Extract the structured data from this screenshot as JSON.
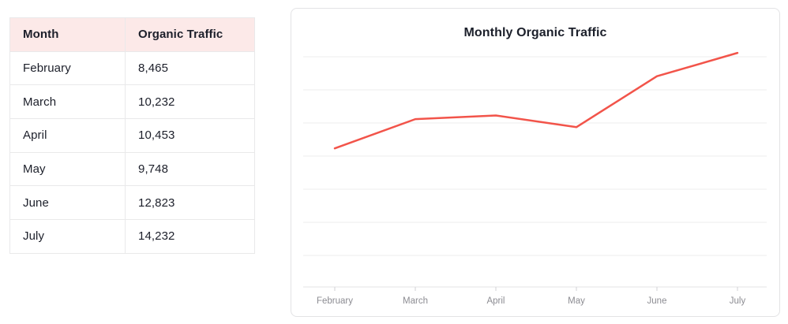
{
  "table": {
    "columns": [
      "Month",
      "Organic Traffic"
    ],
    "rows": [
      [
        "February",
        "8,465"
      ],
      [
        "March",
        "10,232"
      ],
      [
        "April",
        "10,453"
      ],
      [
        "May",
        "9,748"
      ],
      [
        "June",
        "12,823"
      ],
      [
        "July",
        "14,232"
      ]
    ]
  },
  "chart_data": {
    "type": "line",
    "title": "Monthly Organic Traffic",
    "categories": [
      "February",
      "March",
      "April",
      "May",
      "June",
      "July"
    ],
    "values": [
      8465,
      10232,
      10453,
      9748,
      12823,
      14232
    ],
    "series_name": "Organic Traffic",
    "line_color": "#f2544a",
    "ylim": [
      0,
      14800
    ],
    "grid_step": 2000,
    "grid": "horizontal-only",
    "y_tick_labels": "none",
    "legend": "none",
    "colors": {
      "gridline": "#ededee",
      "axis_line": "#e3e3e5",
      "tick": "#d2d2d5",
      "axis_label": "#8c8c92",
      "table_header_bg": "#fce9e8"
    }
  }
}
